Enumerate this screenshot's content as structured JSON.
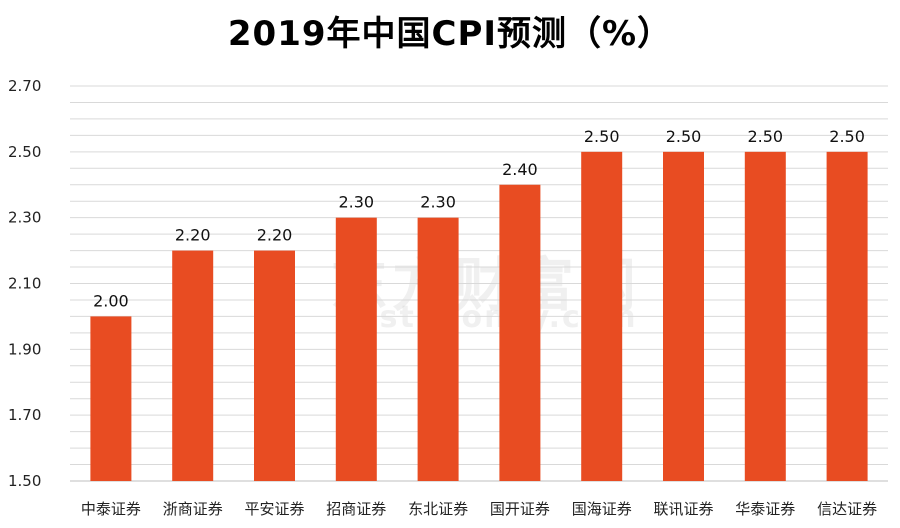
{
  "watermark": {
    "brand_cn": "东方财富网",
    "brand_en": "east money.com"
  },
  "chart_data": {
    "type": "bar",
    "title": "2019年中国CPI预测（%）",
    "categories": [
      "中泰证券",
      "浙商证券",
      "平安证券",
      "招商证券",
      "东北证券",
      "国开证券",
      "国海证券",
      "联讯证券",
      "华泰证券",
      "信达证券"
    ],
    "values": [
      2.0,
      2.2,
      2.2,
      2.3,
      2.3,
      2.4,
      2.5,
      2.5,
      2.5,
      2.5
    ],
    "data_labels": [
      "2.00",
      "2.20",
      "2.20",
      "2.30",
      "2.30",
      "2.40",
      "2.50",
      "2.50",
      "2.50",
      "2.50"
    ],
    "y_ticks": [
      "1.50",
      "1.70",
      "1.90",
      "2.10",
      "2.30",
      "2.50",
      "2.70"
    ],
    "ylim": [
      1.5,
      2.7
    ],
    "grid": true,
    "legend": "none",
    "bar_color": "#e84c22",
    "grid_color": "#d9d9d9"
  }
}
